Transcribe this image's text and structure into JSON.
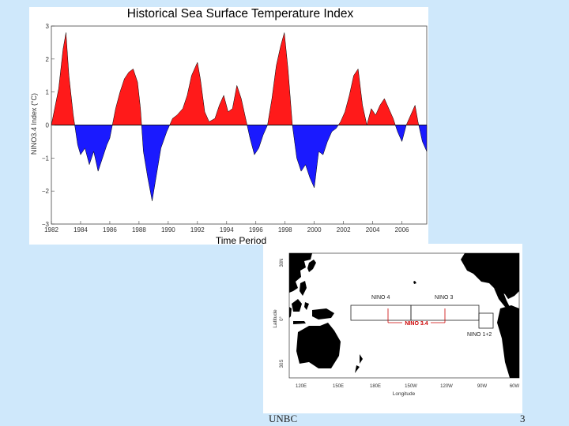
{
  "chart_data": {
    "type": "area",
    "title": "Historical Sea Surface Temperature Index",
    "xlabel": "Time Period",
    "ylabel": "NINO3.4 Index (°C)",
    "ylim": [
      -3,
      3
    ],
    "xlim": [
      1982,
      2007.7
    ],
    "x_ticks": [
      "1982",
      "1984",
      "1986",
      "1988",
      "1990",
      "1992",
      "1994",
      "1996",
      "1998",
      "2000",
      "2002",
      "2004",
      "2006"
    ],
    "y_ticks": [
      "3",
      "2",
      "1",
      "0",
      "−1",
      "−2",
      "−3"
    ],
    "positive_color": "#ff1a1a",
    "negative_color": "#1a1aff",
    "series": [
      {
        "name": "NINO3.4 Index",
        "x": [
          1982.0,
          1982.5,
          1982.8,
          1983.0,
          1983.2,
          1983.5,
          1983.8,
          1984.0,
          1984.3,
          1984.6,
          1984.9,
          1985.2,
          1985.5,
          1985.8,
          1986.0,
          1986.4,
          1986.7,
          1987.0,
          1987.3,
          1987.6,
          1987.9,
          1988.1,
          1988.3,
          1988.6,
          1988.9,
          1989.2,
          1989.5,
          1989.9,
          1990.3,
          1990.6,
          1991.0,
          1991.3,
          1991.6,
          1992.0,
          1992.2,
          1992.5,
          1992.8,
          1993.2,
          1993.5,
          1993.8,
          1994.1,
          1994.4,
          1994.7,
          1995.0,
          1995.3,
          1995.6,
          1995.9,
          1996.2,
          1996.5,
          1996.8,
          1997.1,
          1997.4,
          1997.7,
          1997.95,
          1998.2,
          1998.5,
          1998.8,
          1999.1,
          1999.4,
          1999.7,
          2000.0,
          2000.3,
          2000.6,
          2000.9,
          2001.2,
          2001.5,
          2001.8,
          2002.1,
          2002.4,
          2002.7,
          2003.0,
          2003.3,
          2003.6,
          2003.9,
          2004.2,
          2004.5,
          2004.8,
          2005.1,
          2005.4,
          2005.7,
          2006.0,
          2006.3,
          2006.6,
          2006.9,
          2007.1,
          2007.4,
          2007.7
        ],
        "values": [
          0.0,
          1.1,
          2.3,
          2.8,
          1.5,
          0.3,
          -0.6,
          -0.9,
          -0.7,
          -1.2,
          -0.8,
          -1.4,
          -1.0,
          -0.6,
          -0.4,
          0.5,
          1.0,
          1.4,
          1.6,
          1.7,
          1.3,
          0.5,
          -0.8,
          -1.6,
          -2.3,
          -1.5,
          -0.7,
          -0.2,
          0.2,
          0.3,
          0.5,
          0.9,
          1.5,
          1.9,
          1.4,
          0.4,
          0.1,
          0.2,
          0.6,
          0.9,
          0.4,
          0.5,
          1.2,
          0.8,
          0.2,
          -0.4,
          -0.9,
          -0.7,
          -0.3,
          0.0,
          0.8,
          1.8,
          2.4,
          2.8,
          1.7,
          0.0,
          -1.0,
          -1.4,
          -1.2,
          -1.6,
          -1.9,
          -0.8,
          -0.9,
          -0.5,
          -0.2,
          -0.1,
          0.1,
          0.4,
          0.9,
          1.5,
          1.7,
          0.6,
          0.0,
          0.5,
          0.3,
          0.6,
          0.8,
          0.5,
          0.2,
          -0.2,
          -0.5,
          0.0,
          0.3,
          0.6,
          0.1,
          -0.5,
          -0.8
        ]
      }
    ]
  },
  "map": {
    "y_axis_label": "Latitude",
    "lat_labels": [
      "30N",
      "0°",
      "30S"
    ],
    "lon_labels": [
      "120E",
      "150E",
      "180E",
      "150W",
      "120W",
      "90W",
      "60W"
    ],
    "x_axis_label": "Longitude",
    "region_labels": {
      "nino4": "NINO 4",
      "nino3": "NINO 3",
      "nino34": "NINO 3.4",
      "nino12": "NINO 1+2"
    },
    "region_color": "#cc0000"
  },
  "footer": {
    "left": "UNBC",
    "page": "3"
  }
}
